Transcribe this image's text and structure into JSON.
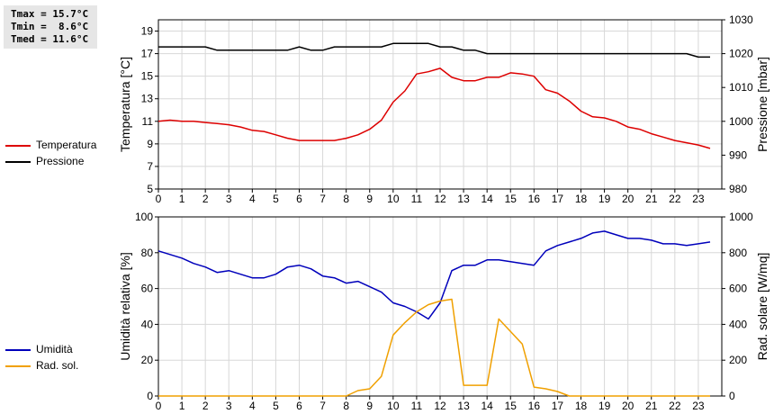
{
  "stats": {
    "tmax": "Tmax = 15.7°C",
    "tmin": "Tmin =  8.6°C",
    "tmed": "Tmed = 11.6°C"
  },
  "legend_top": [
    {
      "label": "Temperatura",
      "color": "#dd0000"
    },
    {
      "label": "Pressione",
      "color": "#000000"
    }
  ],
  "legend_bottom": [
    {
      "label": "Umidità",
      "color": "#0000bb"
    },
    {
      "label": "Rad. sol.",
      "color": "#f0a000"
    }
  ],
  "chart_data": [
    {
      "type": "line",
      "ylabel": "Temperatura [°C]",
      "y2label": "Pressione [mbar]",
      "xlim": [
        0,
        24
      ],
      "ylim": [
        5,
        20
      ],
      "y2lim": [
        980,
        1030
      ],
      "x_ticks": [
        "0",
        "1",
        "2",
        "3",
        "4",
        "5",
        "6",
        "7",
        "8",
        "9",
        "10",
        "11",
        "12",
        "13",
        "14",
        "15",
        "16",
        "17",
        "18",
        "19",
        "20",
        "21",
        "22",
        "23"
      ],
      "y_ticks": [
        "5",
        "7",
        "9",
        "11",
        "13",
        "15",
        "17",
        "19"
      ],
      "y2_ticks": [
        "980",
        "990",
        "1000",
        "1010",
        "1020",
        "1030"
      ],
      "grid": true,
      "series": [
        {
          "name": "Temperatura",
          "color": "#dd0000",
          "axis": "left",
          "x": [
            0,
            0.5,
            1,
            1.5,
            2,
            2.5,
            3,
            3.5,
            4,
            4.5,
            5,
            5.5,
            6,
            6.5,
            7,
            7.5,
            8,
            8.5,
            9,
            9.5,
            10,
            10.5,
            11,
            11.5,
            12,
            12.5,
            13,
            13.5,
            14,
            14.5,
            15,
            15.5,
            16,
            16.5,
            17,
            17.5,
            18,
            18.5,
            19,
            19.5,
            20,
            20.5,
            21,
            21.5,
            22,
            22.5,
            23,
            23.5
          ],
          "values": [
            11.0,
            11.1,
            11.0,
            11.0,
            10.9,
            10.8,
            10.7,
            10.5,
            10.2,
            10.1,
            9.8,
            9.5,
            9.3,
            9.3,
            9.3,
            9.3,
            9.5,
            9.8,
            10.3,
            11.1,
            12.7,
            13.7,
            15.2,
            15.4,
            15.7,
            14.9,
            14.6,
            14.6,
            14.9,
            14.9,
            15.3,
            15.2,
            15.0,
            13.8,
            13.5,
            12.8,
            11.9,
            11.4,
            11.3,
            11.0,
            10.5,
            10.3,
            9.9,
            9.6,
            9.3,
            9.1,
            8.9,
            8.6
          ]
        },
        {
          "name": "Pressione",
          "color": "#000000",
          "axis": "right",
          "x": [
            0,
            0.5,
            1,
            1.5,
            2,
            2.5,
            3,
            3.5,
            4,
            4.5,
            5,
            5.5,
            6,
            6.5,
            7,
            7.5,
            8,
            8.5,
            9,
            9.5,
            10,
            10.5,
            11,
            11.5,
            12,
            12.5,
            13,
            13.5,
            14,
            14.5,
            15,
            15.5,
            16,
            16.5,
            17,
            17.5,
            18,
            18.5,
            19,
            19.5,
            20,
            20.5,
            21,
            21.5,
            22,
            22.5,
            23,
            23.5
          ],
          "values": [
            1022,
            1022,
            1022,
            1022,
            1022,
            1021,
            1021,
            1021,
            1021,
            1021,
            1021,
            1021,
            1022,
            1021,
            1021,
            1022,
            1022,
            1022,
            1022,
            1022,
            1023,
            1023,
            1023,
            1023,
            1022,
            1022,
            1021,
            1021,
            1020,
            1020,
            1020,
            1020,
            1020,
            1020,
            1020,
            1020,
            1020,
            1020,
            1020,
            1020,
            1020,
            1020,
            1020,
            1020,
            1020,
            1020,
            1019,
            1019
          ]
        }
      ]
    },
    {
      "type": "line",
      "ylabel": "Umidità relativa [%]",
      "y2label": "Rad. solare [W/mq]",
      "xlim": [
        0,
        24
      ],
      "ylim": [
        0,
        100
      ],
      "y2lim": [
        0,
        1000
      ],
      "x_ticks": [
        "0",
        "1",
        "2",
        "3",
        "4",
        "5",
        "6",
        "7",
        "8",
        "9",
        "10",
        "11",
        "12",
        "13",
        "14",
        "15",
        "16",
        "17",
        "18",
        "19",
        "20",
        "21",
        "22",
        "23"
      ],
      "y_ticks": [
        "0",
        "20",
        "40",
        "60",
        "80",
        "100"
      ],
      "y2_ticks": [
        "0",
        "200",
        "400",
        "600",
        "800",
        "1000"
      ],
      "grid": true,
      "series": [
        {
          "name": "Umidità",
          "color": "#0000bb",
          "axis": "left",
          "x": [
            0,
            0.5,
            1,
            1.5,
            2,
            2.5,
            3,
            3.5,
            4,
            4.5,
            5,
            5.5,
            6,
            6.5,
            7,
            7.5,
            8,
            8.5,
            9,
            9.5,
            10,
            10.5,
            11,
            11.5,
            12,
            12.5,
            13,
            13.5,
            14,
            14.5,
            15,
            15.5,
            16,
            16.5,
            17,
            17.5,
            18,
            18.5,
            19,
            19.5,
            20,
            20.5,
            21,
            21.5,
            22,
            22.5,
            23,
            23.5
          ],
          "values": [
            81,
            79,
            77,
            74,
            72,
            69,
            70,
            68,
            66,
            66,
            68,
            72,
            73,
            71,
            67,
            66,
            63,
            64,
            61,
            58,
            52,
            50,
            47,
            43,
            52,
            70,
            73,
            73,
            76,
            76,
            75,
            74,
            73,
            81,
            84,
            86,
            88,
            91,
            92,
            90,
            88,
            88,
            87,
            85,
            85,
            84,
            85,
            86
          ]
        },
        {
          "name": "Rad. sol.",
          "color": "#f0a000",
          "axis": "right",
          "x": [
            0,
            0.5,
            1,
            1.5,
            2,
            2.5,
            3,
            3.5,
            4,
            4.5,
            5,
            5.5,
            6,
            6.5,
            7,
            7.5,
            8,
            8.5,
            9,
            9.5,
            10,
            10.5,
            11,
            11.5,
            12,
            12.5,
            13,
            13.5,
            14,
            14.5,
            15,
            15.5,
            16,
            16.5,
            17,
            17.5,
            18,
            18.5,
            19,
            19.5,
            20,
            20.5,
            21,
            21.5,
            22,
            22.5,
            23,
            23.5
          ],
          "values": [
            0,
            0,
            0,
            0,
            0,
            0,
            0,
            0,
            0,
            0,
            0,
            0,
            0,
            0,
            0,
            0,
            0,
            30,
            40,
            110,
            340,
            410,
            470,
            510,
            530,
            540,
            60,
            60,
            60,
            430,
            360,
            290,
            50,
            40,
            25,
            0,
            0,
            0,
            0,
            0,
            0,
            0,
            0,
            0,
            0,
            0,
            0,
            0
          ]
        }
      ]
    }
  ]
}
